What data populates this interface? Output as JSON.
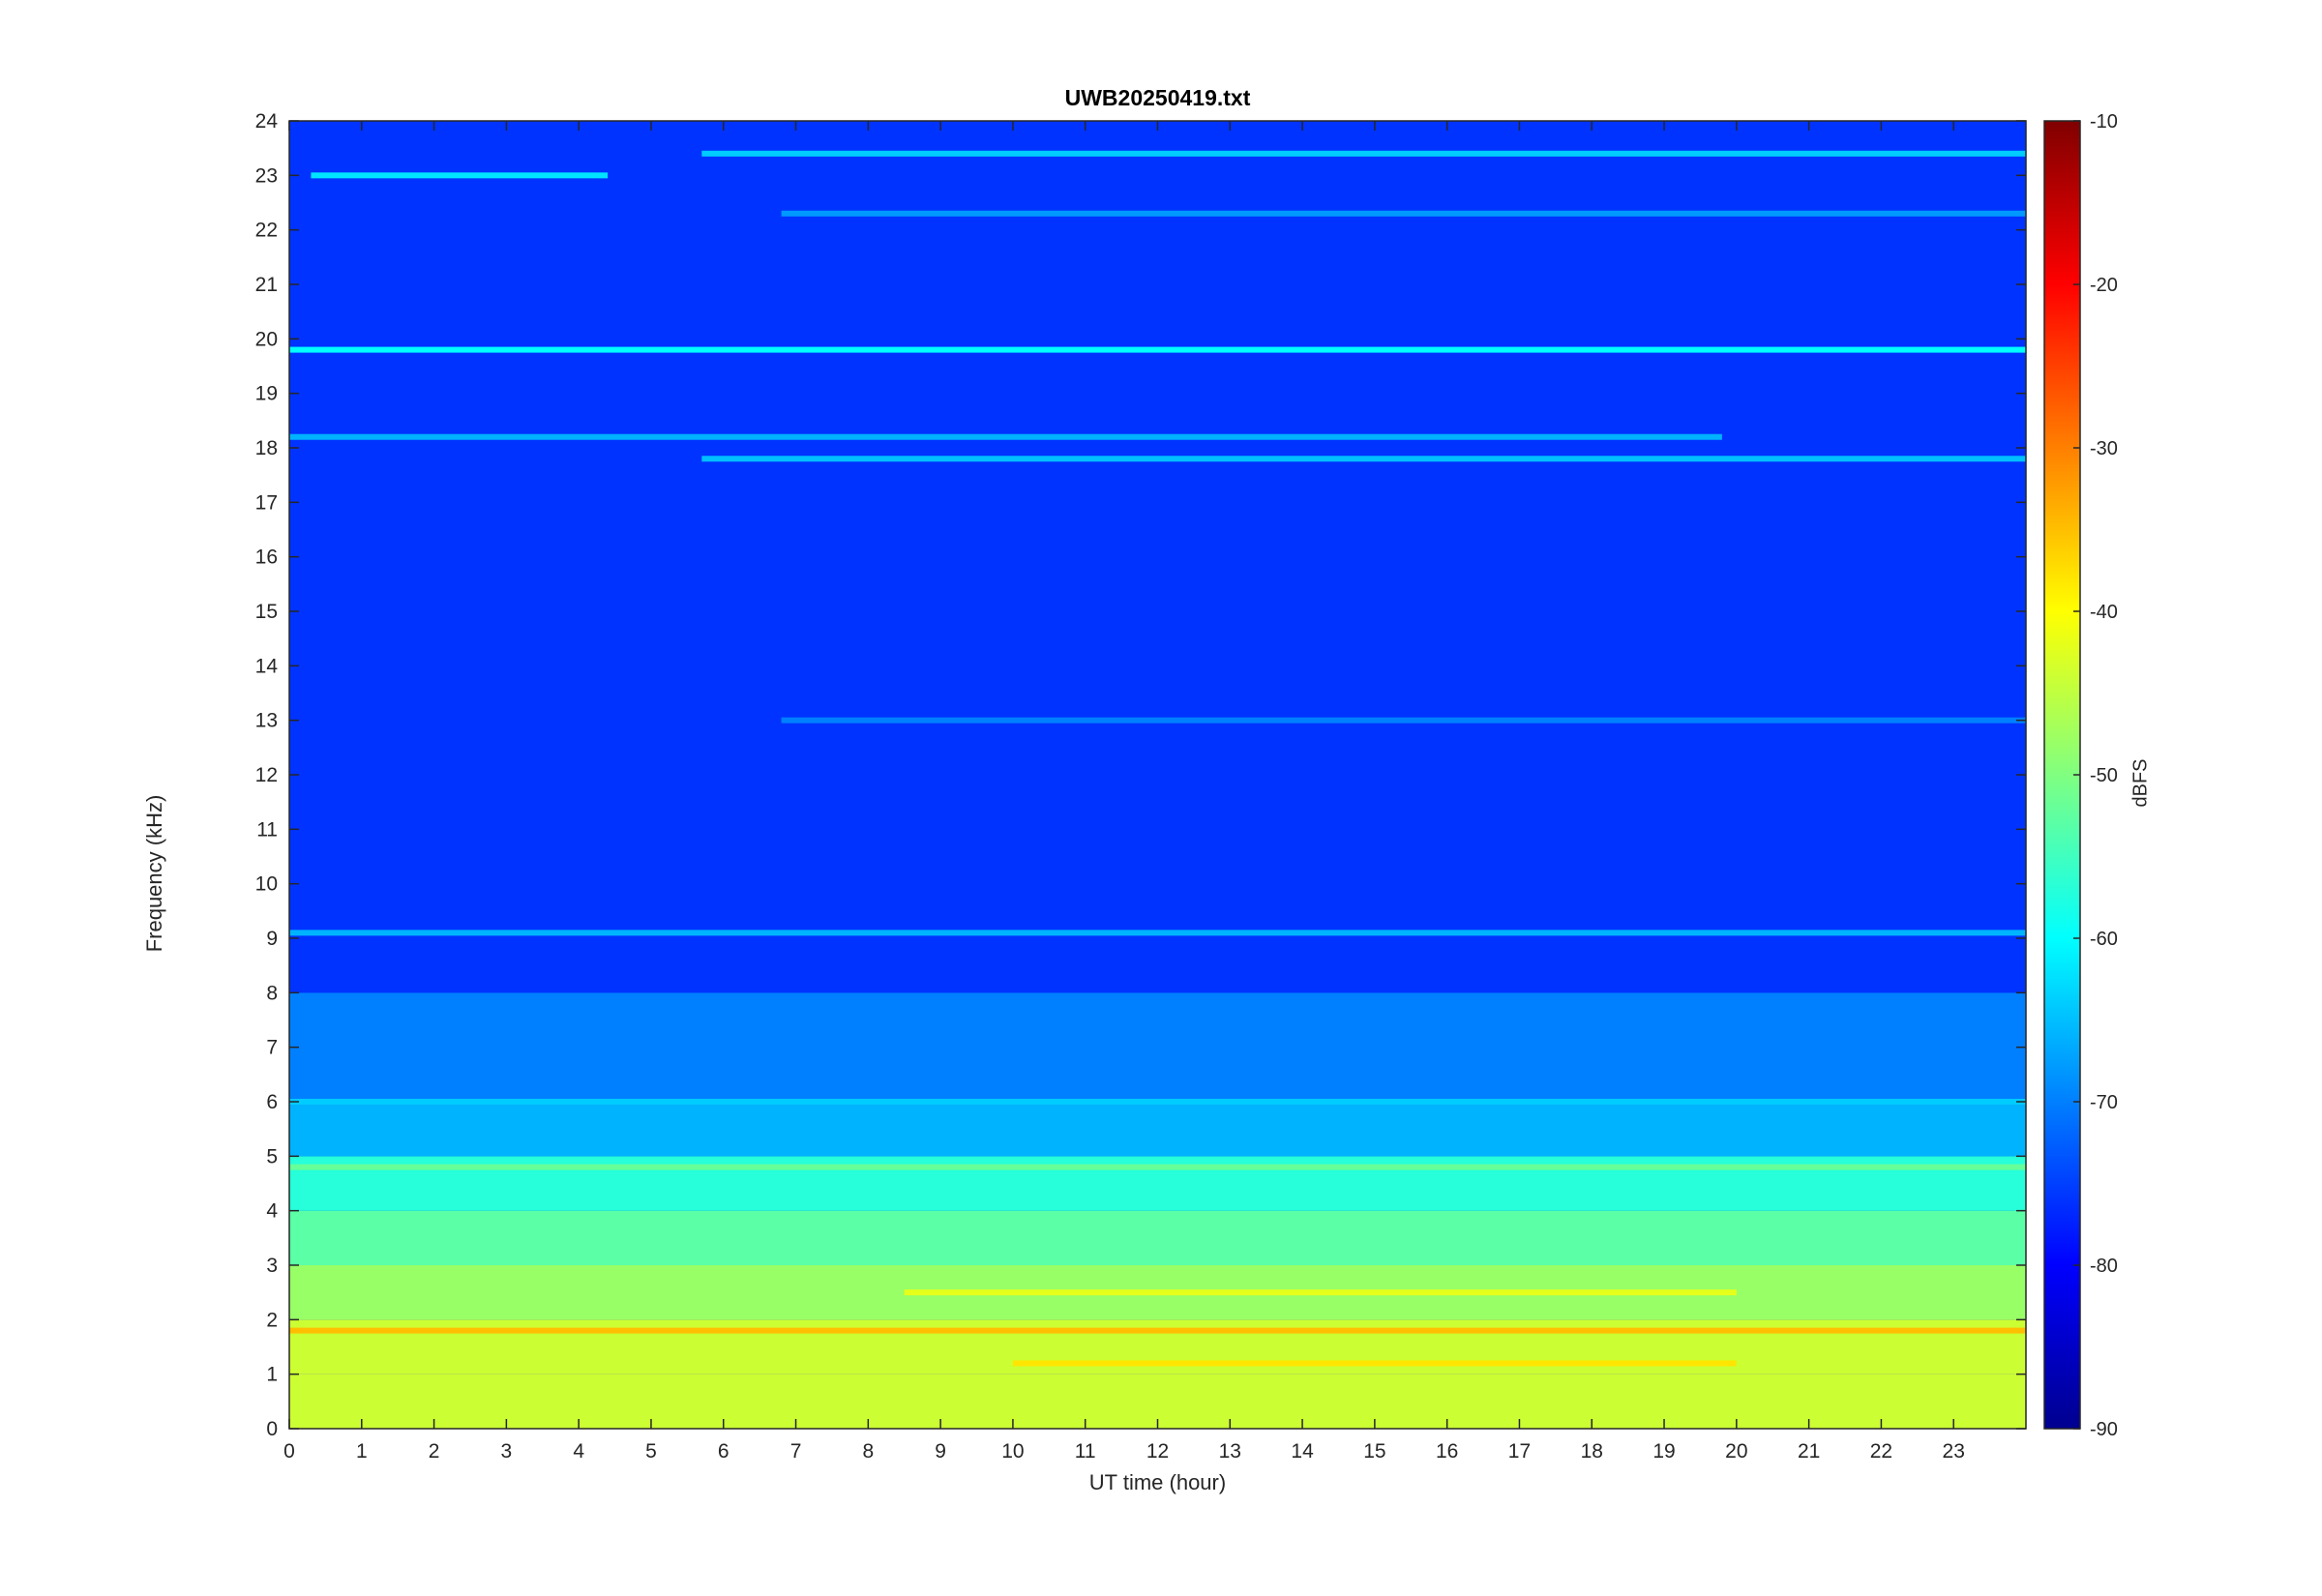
{
  "chart_data": {
    "type": "heatmap",
    "title": "UWB20250419.txt",
    "xlabel": "UT time (hour)",
    "ylabel": "Frequency (kHz)",
    "xlim": [
      0,
      24
    ],
    "ylim": [
      0,
      24
    ],
    "x_ticks": [
      "0",
      "1",
      "2",
      "3",
      "4",
      "5",
      "6",
      "7",
      "8",
      "9",
      "10",
      "11",
      "12",
      "13",
      "14",
      "15",
      "16",
      "17",
      "18",
      "19",
      "20",
      "21",
      "22",
      "23"
    ],
    "y_ticks": [
      "0",
      "1",
      "2",
      "3",
      "4",
      "5",
      "6",
      "7",
      "8",
      "9",
      "10",
      "11",
      "12",
      "13",
      "14",
      "15",
      "16",
      "17",
      "18",
      "19",
      "20",
      "21",
      "22",
      "23",
      "24"
    ],
    "colorbar": {
      "label": "dBFS",
      "range": [
        -90,
        -10
      ],
      "ticks": [
        "-10",
        "-20",
        "-30",
        "-40",
        "-50",
        "-60",
        "-70",
        "-80",
        "-90"
      ],
      "colormap": "jet"
    },
    "background_level_dbfs": -76,
    "band_levels": [
      {
        "from_khz": 0,
        "to_khz": 1,
        "level_dbfs": -44
      },
      {
        "from_khz": 1,
        "to_khz": 2,
        "level_dbfs": -44
      },
      {
        "from_khz": 2,
        "to_khz": 3,
        "level_dbfs": -48
      },
      {
        "from_khz": 3,
        "to_khz": 4,
        "level_dbfs": -53
      },
      {
        "from_khz": 4,
        "to_khz": 5,
        "level_dbfs": -57
      },
      {
        "from_khz": 5,
        "to_khz": 6,
        "level_dbfs": -66
      },
      {
        "from_khz": 6,
        "to_khz": 8,
        "level_dbfs": -70
      },
      {
        "from_khz": 8,
        "to_khz": 24,
        "level_dbfs": -76
      }
    ],
    "narrowband_lines": [
      {
        "freq_khz": 19.8,
        "t_start": 0,
        "t_end": 24,
        "level_dbfs": -60
      },
      {
        "freq_khz": 18.2,
        "t_start": 0,
        "t_end": 19.8,
        "level_dbfs": -66
      },
      {
        "freq_khz": 17.8,
        "t_start": 5.7,
        "t_end": 24,
        "level_dbfs": -65
      },
      {
        "freq_khz": 23.0,
        "t_start": 0.3,
        "t_end": 4.4,
        "level_dbfs": -62
      },
      {
        "freq_khz": 23.4,
        "t_start": 5.7,
        "t_end": 24,
        "level_dbfs": -64
      },
      {
        "freq_khz": 22.3,
        "t_start": 6.8,
        "t_end": 24,
        "level_dbfs": -68
      },
      {
        "freq_khz": 13.0,
        "t_start": 6.8,
        "t_end": 24,
        "level_dbfs": -70
      },
      {
        "freq_khz": 9.1,
        "t_start": 0,
        "t_end": 24,
        "level_dbfs": -66
      },
      {
        "freq_khz": 6.0,
        "t_start": 0,
        "t_end": 24,
        "level_dbfs": -64
      },
      {
        "freq_khz": 4.8,
        "t_start": 0,
        "t_end": 24,
        "level_dbfs": -52
      },
      {
        "freq_khz": 2.5,
        "t_start": 8.5,
        "t_end": 20,
        "level_dbfs": -42
      },
      {
        "freq_khz": 1.8,
        "t_start": 0,
        "t_end": 24,
        "level_dbfs": -35
      },
      {
        "freq_khz": 1.2,
        "t_start": 10,
        "t_end": 20,
        "level_dbfs": -38
      }
    ],
    "grid": false
  }
}
